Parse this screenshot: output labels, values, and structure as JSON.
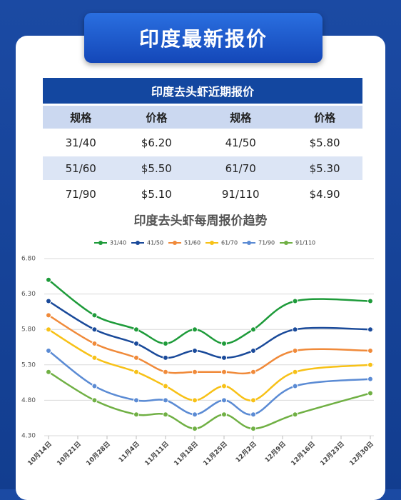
{
  "header": {
    "title": "印度最新报价"
  },
  "table": {
    "title": "印度去头虾近期报价",
    "columns": [
      "规格",
      "价格",
      "规格",
      "价格"
    ],
    "rows": [
      [
        "31/40",
        "$6.20",
        "41/50",
        "$5.80"
      ],
      [
        "51/60",
        "$5.50",
        "61/70",
        "$5.30"
      ],
      [
        "71/90",
        "$5.10",
        "91/110",
        "$4.90"
      ]
    ]
  },
  "chart_data": {
    "type": "line",
    "title": "印度去头虾每周报价趋势",
    "x": [
      0,
      11,
      21,
      28,
      35,
      42,
      49,
      59,
      77
    ],
    "xlim": [
      0,
      77
    ],
    "xticks": [
      {
        "value": 0,
        "label": "10月14日"
      },
      {
        "value": 7,
        "label": "10月21日"
      },
      {
        "value": 14,
        "label": "10月28日"
      },
      {
        "value": 21,
        "label": "11月4日"
      },
      {
        "value": 28,
        "label": "11月11日"
      },
      {
        "value": 35,
        "label": "11月18日"
      },
      {
        "value": 42,
        "label": "11月25日"
      },
      {
        "value": 49,
        "label": "12月2日"
      },
      {
        "value": 56,
        "label": "12月9日"
      },
      {
        "value": 63,
        "label": "12月16日"
      },
      {
        "value": 70,
        "label": "12月23日"
      },
      {
        "value": 77,
        "label": "12月30日"
      }
    ],
    "ylim": [
      4.3,
      6.8
    ],
    "yticks": [
      {
        "value": 4.3,
        "label": "4.30"
      },
      {
        "value": 4.8,
        "label": "4.80"
      },
      {
        "value": 5.3,
        "label": "5.30"
      },
      {
        "value": 5.8,
        "label": "5.80"
      },
      {
        "value": 6.3,
        "label": "6.30"
      },
      {
        "value": 6.8,
        "label": "6.80"
      }
    ],
    "grid": true,
    "series": [
      {
        "name": "31/40",
        "color": "#1e9b3a",
        "values": [
          6.5,
          6.0,
          5.8,
          5.6,
          5.8,
          5.6,
          5.8,
          6.2,
          6.2
        ]
      },
      {
        "name": "41/50",
        "color": "#1a4a9a",
        "values": [
          6.2,
          5.8,
          5.6,
          5.4,
          5.5,
          5.4,
          5.5,
          5.8,
          5.8
        ]
      },
      {
        "name": "51/60",
        "color": "#f08a3a",
        "values": [
          6.0,
          5.6,
          5.4,
          5.2,
          5.2,
          5.2,
          5.2,
          5.5,
          5.5
        ]
      },
      {
        "name": "61/70",
        "color": "#f7c117",
        "values": [
          5.8,
          5.4,
          5.2,
          5.0,
          4.8,
          5.0,
          4.8,
          5.2,
          5.3
        ]
      },
      {
        "name": "71/90",
        "color": "#5b8bd4",
        "values": [
          5.5,
          5.0,
          4.8,
          4.8,
          4.6,
          4.8,
          4.6,
          5.0,
          5.1
        ]
      },
      {
        "name": "91/110",
        "color": "#70b044",
        "values": [
          5.2,
          4.8,
          4.6,
          4.6,
          4.4,
          4.6,
          4.4,
          4.6,
          4.9
        ]
      }
    ]
  }
}
